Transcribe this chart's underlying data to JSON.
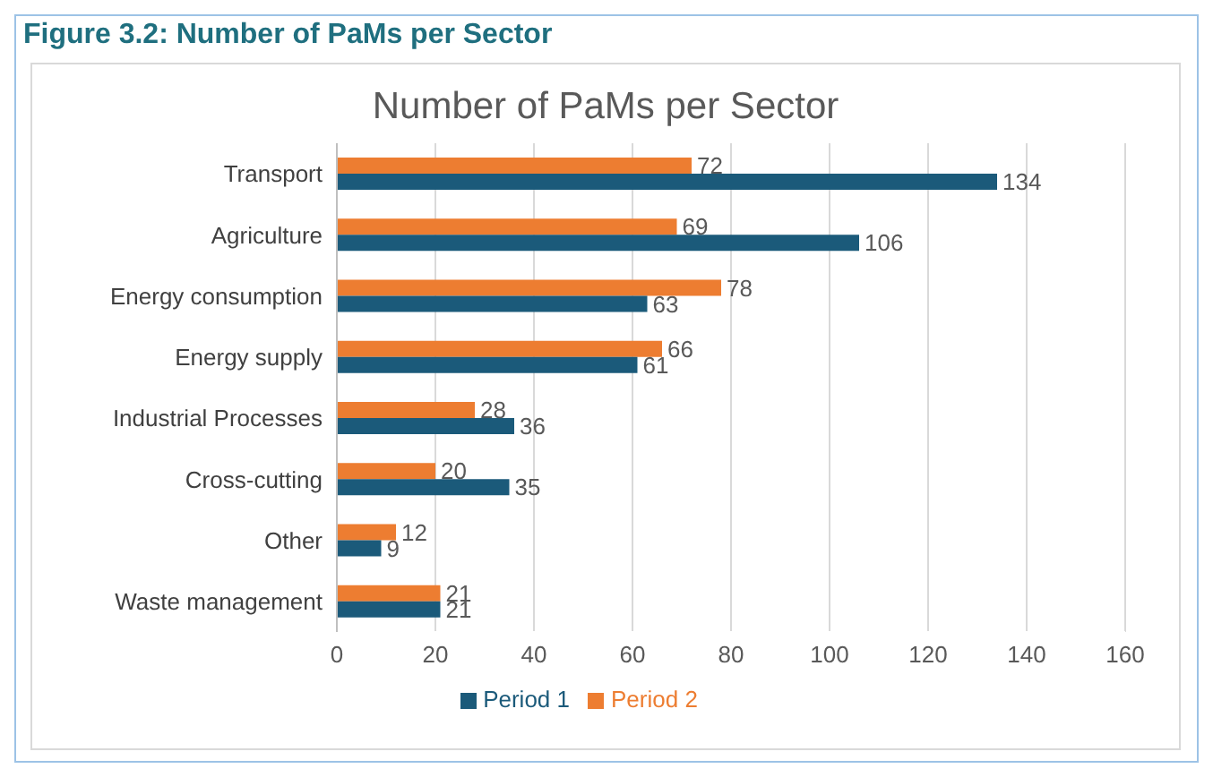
{
  "chart_data": {
    "type": "bar",
    "title": "Figure 3.2:   Number of PaMs per Sector",
    "subtitle": "Number of PaMs per Sector",
    "orientation": "horizontal",
    "categories": [
      "Transport",
      "Agriculture",
      "Energy consumption",
      "Energy supply",
      "Industrial Processes",
      "Cross-cutting",
      "Other",
      "Waste management"
    ],
    "series": [
      {
        "name": "Period 2",
        "color": "#ed7d31",
        "values": [
          72,
          69,
          78,
          66,
          28,
          20,
          12,
          21
        ]
      },
      {
        "name": "Period 1",
        "color": "#1b5a7a",
        "values": [
          134,
          106,
          63,
          61,
          36,
          35,
          9,
          21
        ]
      }
    ],
    "xlim": [
      0,
      160
    ],
    "xticks": [
      0,
      20,
      40,
      60,
      80,
      100,
      120,
      140,
      160
    ],
    "grid": "x",
    "legend": "bottom",
    "data_labels": true
  }
}
